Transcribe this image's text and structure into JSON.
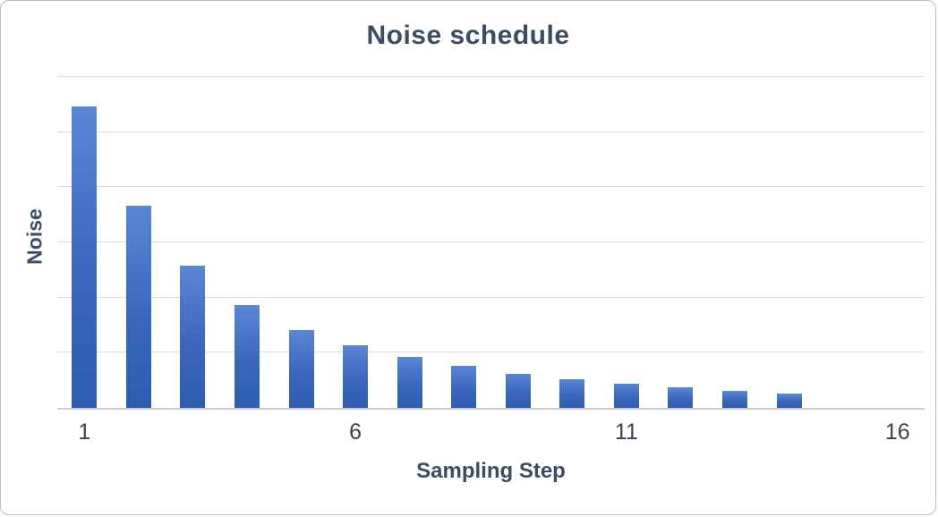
{
  "chart_data": {
    "type": "bar",
    "title": "Noise schedule",
    "xlabel": "Sampling Step",
    "ylabel": "Noise",
    "categories": [
      "1",
      "2",
      "3",
      "4",
      "5",
      "6",
      "7",
      "8",
      "9",
      "10",
      "11",
      "12",
      "13",
      "14",
      "15",
      "16"
    ],
    "values": [
      0.91,
      0.61,
      0.43,
      0.31,
      0.235,
      0.19,
      0.154,
      0.127,
      0.103,
      0.086,
      0.073,
      0.062,
      0.051,
      0.042,
      0,
      0
    ],
    "ylim": [
      0,
      1.0
    ],
    "x_ticks_shown": [
      "1",
      "6",
      "11",
      "16"
    ],
    "y_ticks_shown": [],
    "gridline_divisions": 6,
    "grid": "horizontal",
    "legend": "none",
    "colors": {
      "bar_gradient_top": "#5b86d6",
      "bar_gradient_bottom": "#2d5cb0",
      "gridline": "#dadde1",
      "axis_line": "#c9cdd2",
      "title_text": "#3e4c63",
      "tick_text": "#3a4150",
      "frame_border": "#b9bcc1",
      "background": "#ffffff"
    }
  }
}
